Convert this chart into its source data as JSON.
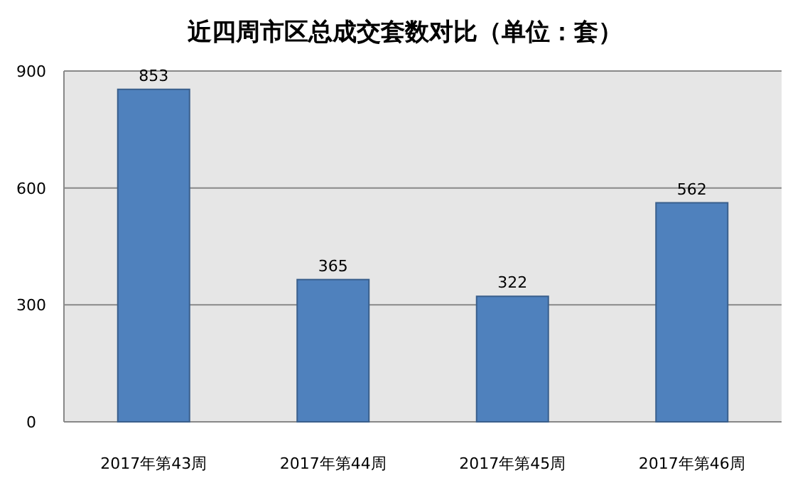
{
  "chart_data": {
    "type": "bar",
    "title": "近四周市区总成交套数对比（单位：套）",
    "categories": [
      "2017年第43周",
      "2017年第44周",
      "2017年第45周",
      "2017年第46周"
    ],
    "values": [
      853,
      365,
      322,
      562
    ],
    "color": "#4f81bd",
    "ylim": [
      0,
      900
    ],
    "yticks": [
      0,
      300,
      600,
      900
    ],
    "grid": "y",
    "data_labels": true
  }
}
